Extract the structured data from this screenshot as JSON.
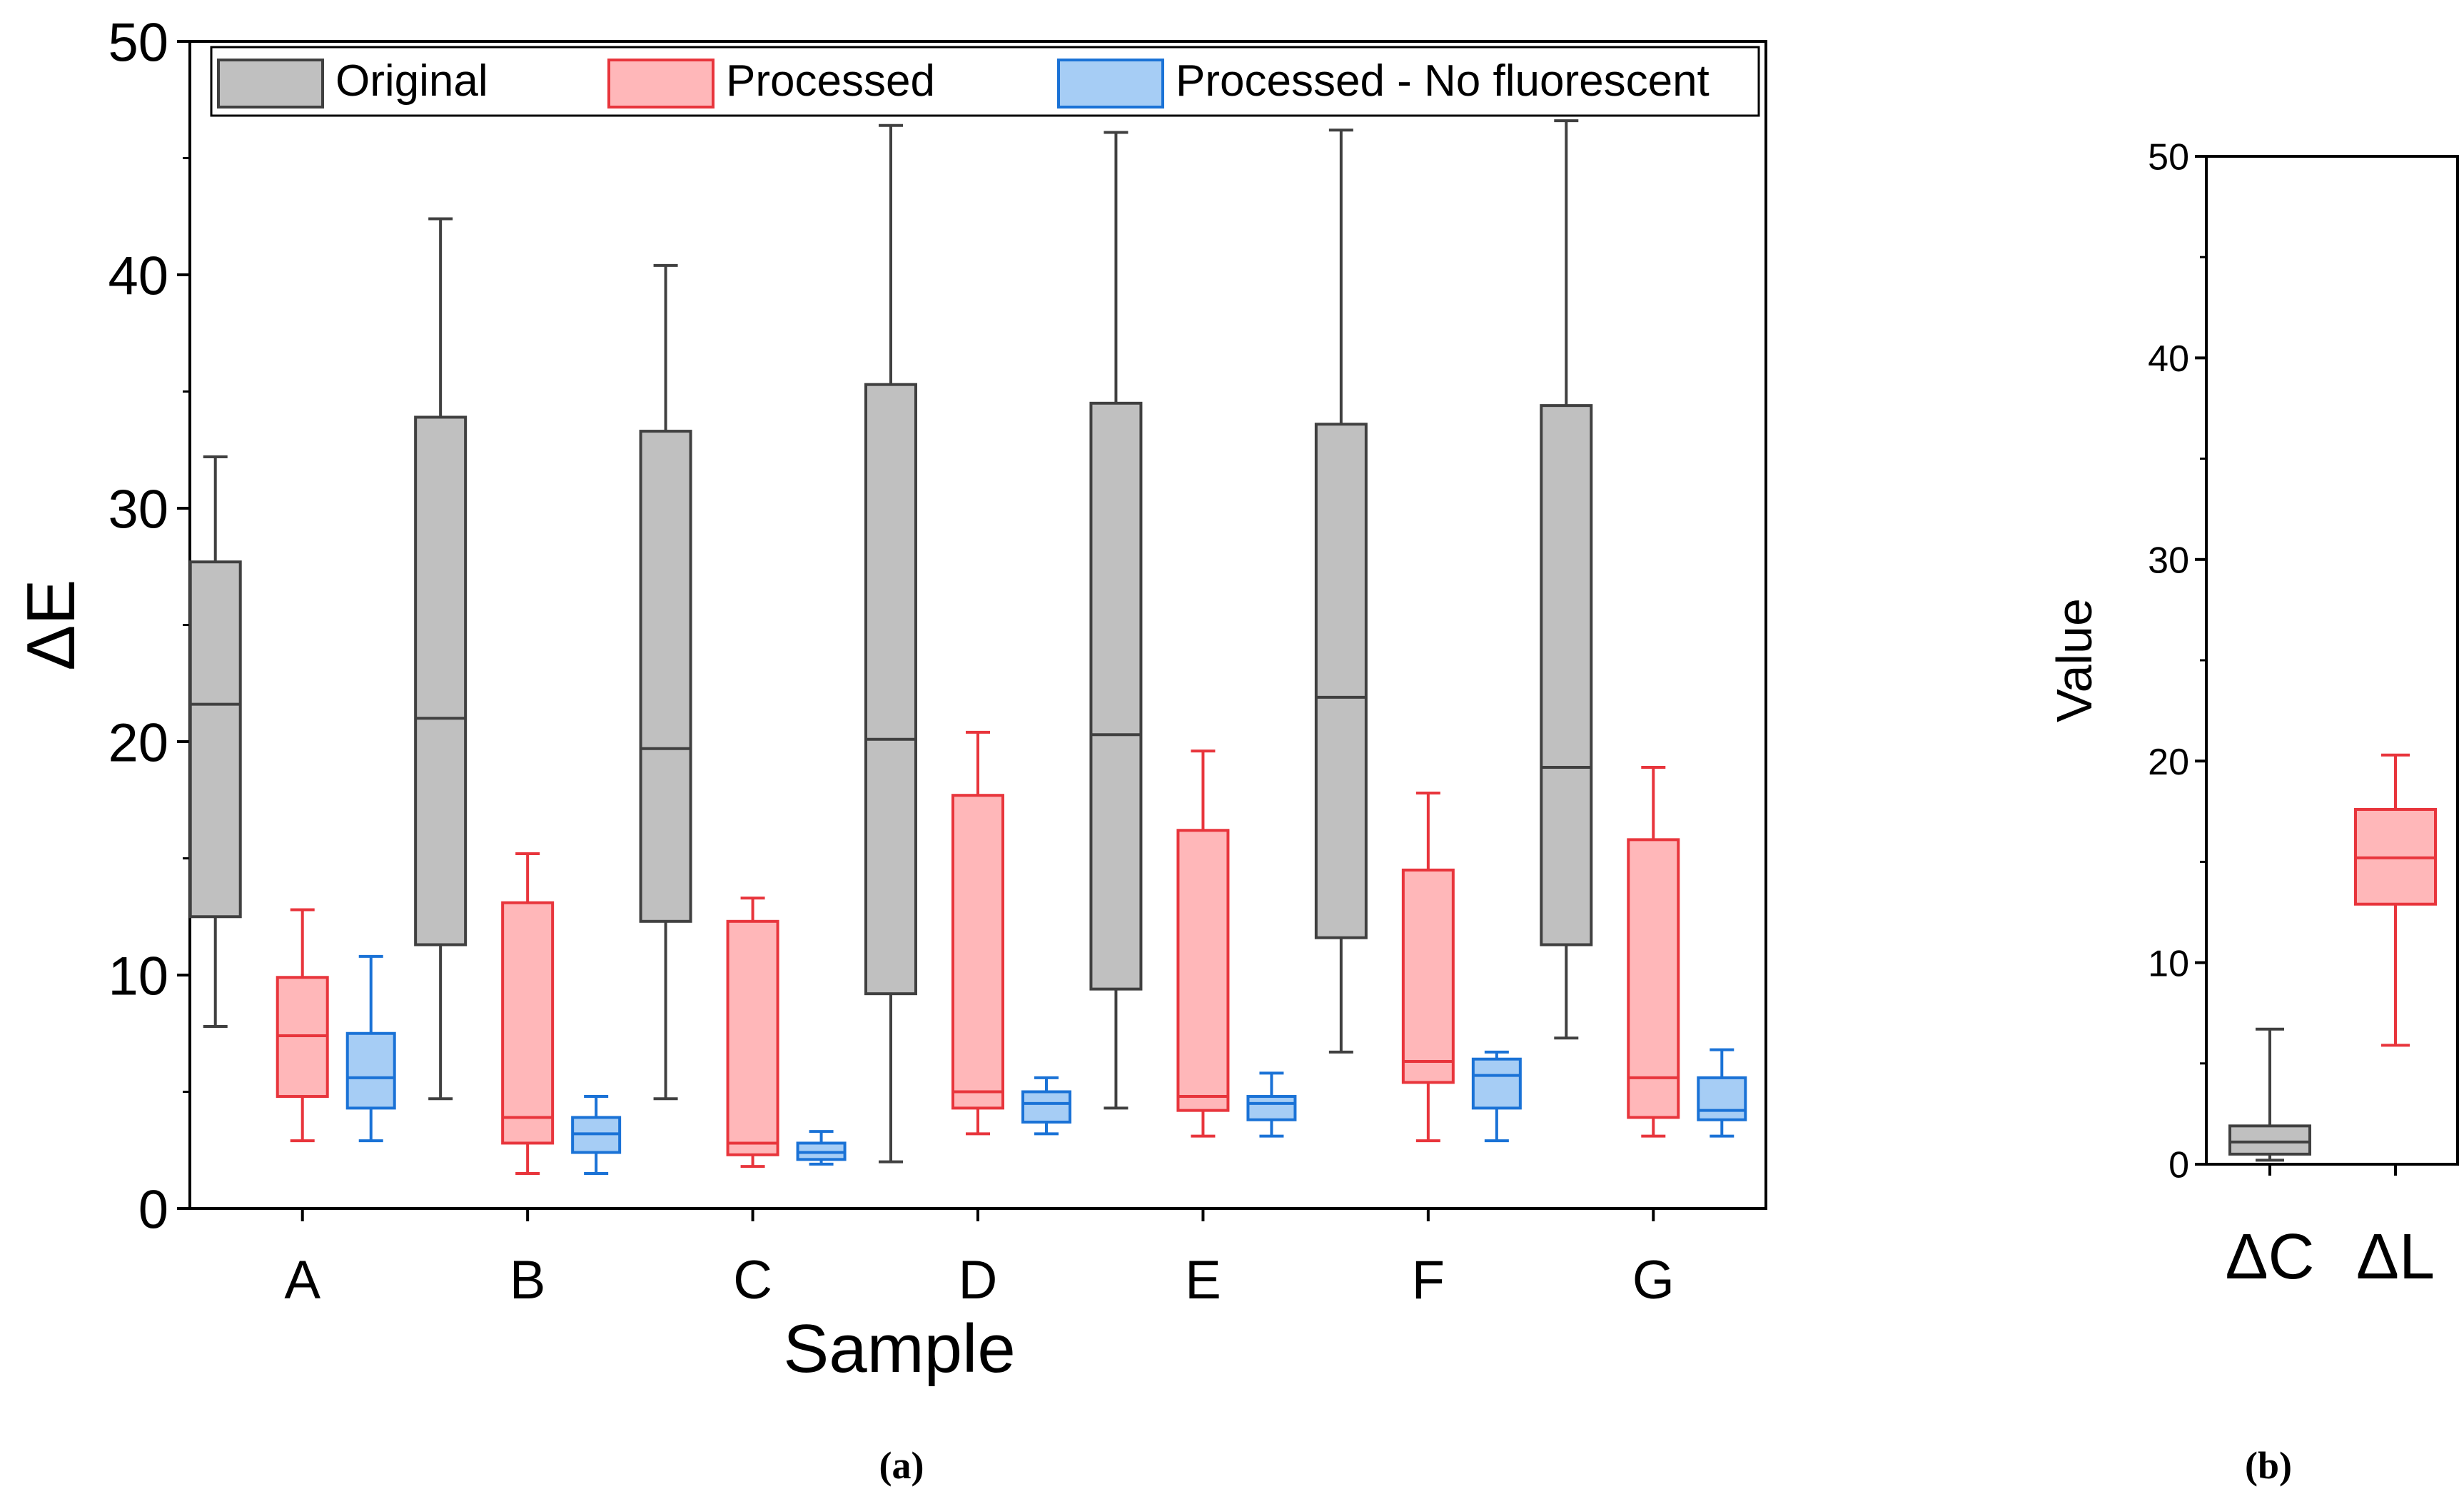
{
  "figure": {
    "caption_a": "(a)",
    "caption_b": "(b)"
  },
  "chart_data": [
    {
      "type": "box",
      "panel": "a",
      "title": "",
      "xlabel": "Sample",
      "ylabel": "ΔE",
      "ylim": [
        0,
        50
      ],
      "yticks": [
        0,
        10,
        20,
        30,
        40,
        50
      ],
      "grid": false,
      "legend_position": "top",
      "categories": [
        "A",
        "B",
        "C",
        "D",
        "E",
        "F",
        "G"
      ],
      "series": [
        {
          "name": "Original",
          "stroke": "#404040",
          "fill": "#c0c0c0",
          "boxes": [
            {
              "min": 7.8,
              "q1": 12.5,
              "median": 21.6,
              "q3": 27.7,
              "max": 32.2
            },
            {
              "min": 4.7,
              "q1": 11.3,
              "median": 21.0,
              "q3": 33.9,
              "max": 42.4
            },
            {
              "min": 4.7,
              "q1": 12.3,
              "median": 19.7,
              "q3": 33.3,
              "max": 40.4
            },
            {
              "min": 2.0,
              "q1": 9.2,
              "median": 20.1,
              "q3": 35.3,
              "max": 46.4
            },
            {
              "min": 4.3,
              "q1": 9.4,
              "median": 20.3,
              "q3": 34.5,
              "max": 46.1
            },
            {
              "min": 6.7,
              "q1": 11.6,
              "median": 21.9,
              "q3": 33.6,
              "max": 46.2
            },
            {
              "min": 7.3,
              "q1": 11.3,
              "median": 18.9,
              "q3": 34.4,
              "max": 46.6
            }
          ]
        },
        {
          "name": "Processed",
          "stroke": "#e8353c",
          "fill": "#ffb7b9",
          "boxes": [
            {
              "min": 2.9,
              "q1": 4.8,
              "median": 7.4,
              "q3": 9.9,
              "max": 12.8
            },
            {
              "min": 1.5,
              "q1": 2.8,
              "median": 3.9,
              "q3": 13.1,
              "max": 15.2
            },
            {
              "min": 1.8,
              "q1": 2.3,
              "median": 2.8,
              "q3": 12.3,
              "max": 13.3
            },
            {
              "min": 3.2,
              "q1": 4.3,
              "median": 5.0,
              "q3": 17.7,
              "max": 20.4
            },
            {
              "min": 3.1,
              "q1": 4.2,
              "median": 4.8,
              "q3": 16.2,
              "max": 19.6
            },
            {
              "min": 2.9,
              "q1": 5.4,
              "median": 6.3,
              "q3": 14.5,
              "max": 17.8
            },
            {
              "min": 3.1,
              "q1": 3.9,
              "median": 5.6,
              "q3": 15.8,
              "max": 18.9
            }
          ]
        },
        {
          "name": "Processed - No fluorescent",
          "stroke": "#1a72d6",
          "fill": "#a6cdf5",
          "boxes": [
            {
              "min": 2.9,
              "q1": 4.3,
              "median": 5.6,
              "q3": 7.5,
              "max": 10.8
            },
            {
              "min": 1.5,
              "q1": 2.4,
              "median": 3.2,
              "q3": 3.9,
              "max": 4.8
            },
            {
              "min": 1.9,
              "q1": 2.1,
              "median": 2.4,
              "q3": 2.8,
              "max": 3.3
            },
            {
              "min": 3.2,
              "q1": 3.7,
              "median": 4.5,
              "q3": 5.0,
              "max": 5.6
            },
            {
              "min": 3.1,
              "q1": 3.8,
              "median": 4.5,
              "q3": 4.8,
              "max": 5.8
            },
            {
              "min": 2.9,
              "q1": 4.3,
              "median": 5.7,
              "q3": 6.4,
              "max": 6.7
            },
            {
              "min": 3.1,
              "q1": 3.8,
              "median": 4.2,
              "q3": 5.6,
              "max": 6.8
            }
          ]
        }
      ]
    },
    {
      "type": "box",
      "panel": "b",
      "title": "",
      "xlabel": "",
      "ylabel": "Value",
      "ylim": [
        0,
        50
      ],
      "yticks": [
        0,
        10,
        20,
        30,
        40,
        50
      ],
      "grid": false,
      "categories": [
        "ΔC",
        "ΔL"
      ],
      "boxes": [
        {
          "category": "ΔC",
          "stroke": "#404040",
          "fill": "#c0c0c0",
          "min": 0.2,
          "q1": 0.5,
          "median": 1.1,
          "q3": 1.9,
          "max": 6.7
        },
        {
          "category": "ΔL",
          "stroke": "#e8353c",
          "fill": "#ffb7b9",
          "min": 5.9,
          "q1": 12.9,
          "median": 15.2,
          "q3": 17.6,
          "max": 20.3
        }
      ]
    }
  ]
}
